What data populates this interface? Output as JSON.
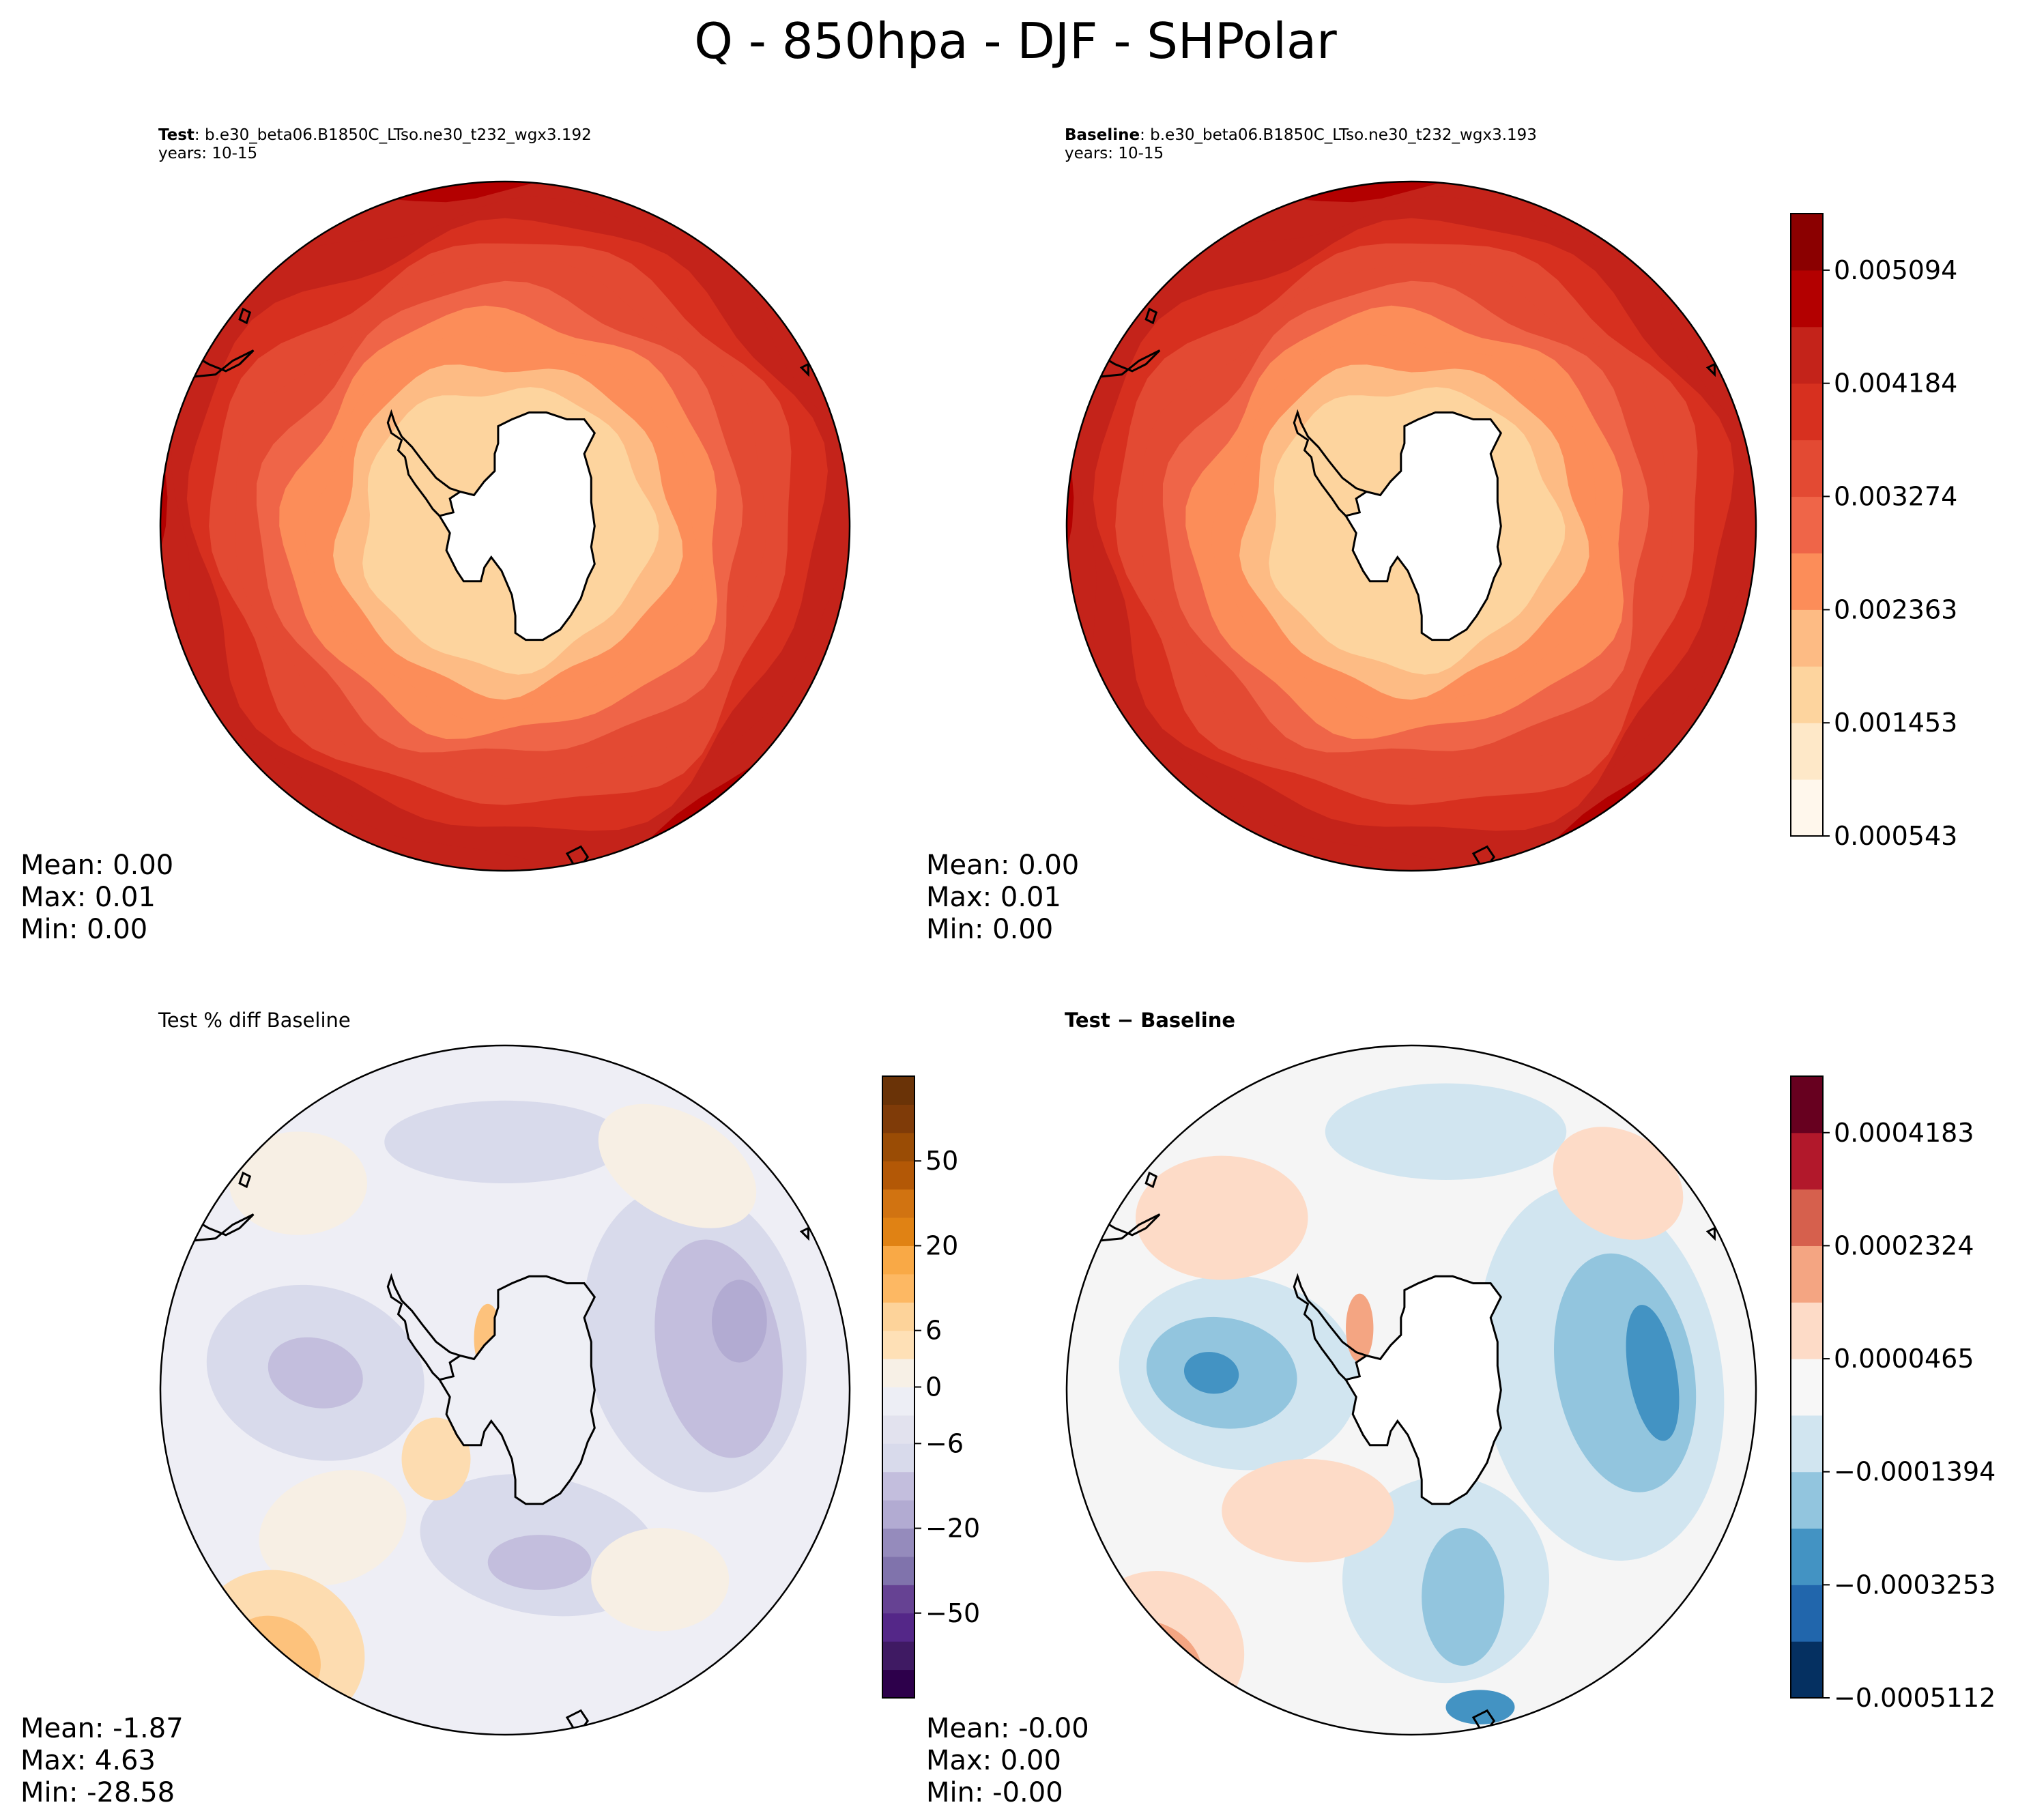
{
  "title": "Q - 850hpa - DJF - SHPolar",
  "chart_data": [
    {
      "type": "heatmap",
      "panel": "test",
      "projection": "south polar stereographic",
      "label_bold": "Test",
      "label_rest": ": b.e30_beta06.B1850C_LTso.ne30_t232_wgx3.192",
      "years": "years: 10-15",
      "stats": {
        "mean": "Mean:  0.00",
        "max": "Max:  0.01",
        "min": "Min:  0.00"
      },
      "rings": [
        0.00497,
        0.00461,
        0.0043,
        0.004,
        0.0037,
        0.0034,
        0.0031,
        0.0028,
        0.0025,
        0.0022,
        0.0019,
        0.0016
      ]
    },
    {
      "type": "heatmap",
      "panel": "baseline",
      "projection": "south polar stereographic",
      "label_bold": "Baseline",
      "label_rest": ": b.e30_beta06.B1850C_LTso.ne30_t232_wgx3.193",
      "years": "years: 10-15",
      "stats": {
        "mean": "Mean:  0.00",
        "max": "Max:  0.01",
        "min": "Min:  0.00"
      },
      "rings": [
        0.00497,
        0.00461,
        0.0043,
        0.004,
        0.0037,
        0.0034,
        0.0031,
        0.0028,
        0.0025,
        0.0022,
        0.0019,
        0.0016
      ],
      "colorbar": {
        "range": [
          0.000543,
          0.005549
        ],
        "tick_labels": [
          "0.000543",
          "0.001453",
          "0.002363",
          "0.003274",
          "0.004184",
          "0.005094"
        ],
        "tick_values": [
          0.000543,
          0.001453,
          0.002363,
          0.003274,
          0.004184,
          0.005094
        ],
        "levels": 11,
        "colors": [
          "#fff7ec",
          "#fee8c8",
          "#fdd49e",
          "#fdbb84",
          "#fc8d59",
          "#ef6548",
          "#e34a33",
          "#d7301f",
          "#c4231a",
          "#b30000",
          "#8b0000"
        ]
      }
    },
    {
      "type": "heatmap",
      "panel": "percent_diff",
      "projection": "south polar stereographic",
      "title": "Test % diff Baseline",
      "stats": {
        "mean": "Mean: -1.87",
        "max": "Max:  4.63",
        "min": "Min: -28.58"
      },
      "colorbar": {
        "tick_labels": [
          "50",
          "20",
          "6",
          "0",
          "−6",
          "−20",
          "−50"
        ],
        "tick_values": [
          50,
          20,
          6,
          0,
          -6,
          -20,
          -50
        ],
        "levels": 22,
        "colors": [
          "#2d004b",
          "#3f1a63",
          "#542788",
          "#664293",
          "#8073ac",
          "#958bbc",
          "#b2abd2",
          "#c3bedd",
          "#d8daeb",
          "#e2e2ee",
          "#edeef5",
          "#f7f0e6",
          "#fee0b6",
          "#fdd39a",
          "#fdb863",
          "#f9a946",
          "#e08214",
          "#d17311",
          "#b35806",
          "#9a4c05",
          "#7f3b08",
          "#6a3307"
        ]
      }
    },
    {
      "type": "heatmap",
      "panel": "difference",
      "projection": "south polar stereographic",
      "title_bold": "Test − Baseline",
      "stats": {
        "mean": "Mean: -0.00",
        "max": "Max:  0.00",
        "min": "Min: -0.00"
      },
      "colorbar": {
        "range": [
          -0.0005112,
          0.0005112
        ],
        "tick_labels": [
          "0.0004183",
          "0.0002324",
          "0.0000465",
          "−0.0001394",
          "−0.0003253",
          "−0.0005112"
        ],
        "tick_values": [
          0.0004183,
          0.0002324,
          4.65e-05,
          -0.0001394,
          -0.0003253,
          -0.0005112
        ],
        "levels": 11,
        "colors": [
          "#053061",
          "#2166ac",
          "#4393c3",
          "#92c5de",
          "#d1e5f0",
          "#f7f7f7",
          "#fddbc7",
          "#f4a582",
          "#d6604d",
          "#b2182b",
          "#67001f"
        ]
      }
    }
  ]
}
